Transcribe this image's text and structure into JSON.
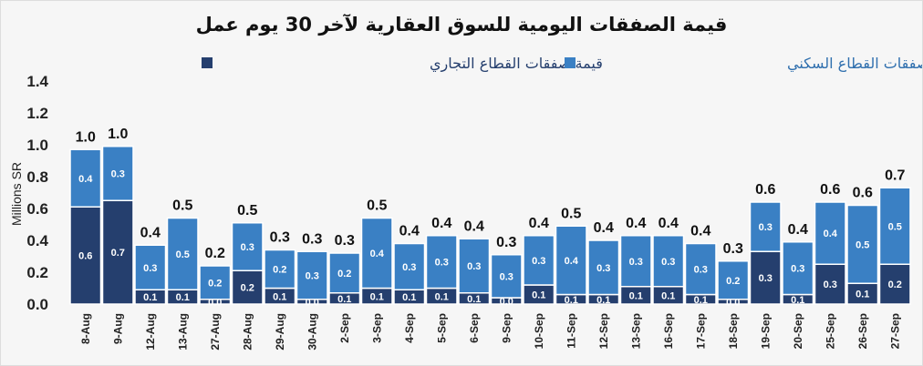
{
  "chart_data": {
    "type": "bar",
    "stacked": true,
    "title": "قيمة الصفقات اليومية للسوق العقارية لآخر  30 يوم عمل",
    "ylabel": "Millions SR",
    "xlabel": "",
    "ylim": [
      0,
      1.4
    ],
    "yticks": [
      "0.0",
      "0.2",
      "0.4",
      "0.6",
      "0.8",
      "1.0",
      "1.2",
      "1.4"
    ],
    "grid": false,
    "legend_position": "top",
    "categories": [
      "8-Aug",
      "9-Aug",
      "12-Aug",
      "13-Aug",
      "27-Aug",
      "28-Aug",
      "29-Aug",
      "30-Aug",
      "2-Sep",
      "3-Sep",
      "4-Sep",
      "5-Sep",
      "6-Sep",
      "9-Sep",
      "10-Sep",
      "11-Sep",
      "12-Sep",
      "13-Sep",
      "16-Sep",
      "17-Sep",
      "18-Sep",
      "19-Sep",
      "20-Sep",
      "25-Sep",
      "26-Sep",
      "27-Sep"
    ],
    "series": [
      {
        "name": "قيمة صفقات القطاع التجاري",
        "color": "#253f6e",
        "values": [
          0.61,
          0.65,
          0.09,
          0.09,
          0.03,
          0.21,
          0.1,
          0.03,
          0.07,
          0.1,
          0.09,
          0.1,
          0.07,
          0.04,
          0.12,
          0.06,
          0.06,
          0.11,
          0.11,
          0.06,
          0.03,
          0.33,
          0.06,
          0.25,
          0.13,
          0.25
        ],
        "labels": [
          "0.6",
          "0.7",
          "0.1",
          "0.1",
          "0.0",
          "0.2",
          "0.1",
          "0.0",
          "0.1",
          "0.1",
          "0.1",
          "0.1",
          "0.1",
          "0.0",
          "0.1",
          "0.1",
          "0.1",
          "0.1",
          "0.1",
          "0.1",
          "0.0",
          "0.3",
          "0.1",
          "0.3",
          "0.1",
          "0.2"
        ]
      },
      {
        "name": "قيمة صفقات القطاع السكني",
        "color": "#3a80c4",
        "values": [
          0.36,
          0.34,
          0.28,
          0.45,
          0.21,
          0.3,
          0.24,
          0.3,
          0.25,
          0.44,
          0.29,
          0.33,
          0.34,
          0.27,
          0.31,
          0.43,
          0.34,
          0.32,
          0.32,
          0.32,
          0.24,
          0.31,
          0.33,
          0.39,
          0.49,
          0.48
        ],
        "labels": [
          "0.4",
          "0.3",
          "0.3",
          "0.5",
          "0.2",
          "0.3",
          "0.2",
          "0.3",
          "0.2",
          "0.4",
          "0.3",
          "0.3",
          "0.3",
          "0.3",
          "0.3",
          "0.4",
          "0.3",
          "0.3",
          "0.3",
          "0.3",
          "0.2",
          "0.3",
          "0.3",
          "0.4",
          "0.5",
          "0.5"
        ]
      }
    ],
    "totals_labels": [
      "1.0",
      "1.0",
      "0.4",
      "0.5",
      "0.2",
      "0.5",
      "0.3",
      "0.3",
      "0.3",
      "0.5",
      "0.4",
      "0.4",
      "0.4",
      "0.3",
      "0.4",
      "0.5",
      "0.4",
      "0.4",
      "0.4",
      "0.4",
      "0.3",
      "0.6",
      "0.4",
      "0.6",
      "0.6",
      "0.7"
    ]
  }
}
